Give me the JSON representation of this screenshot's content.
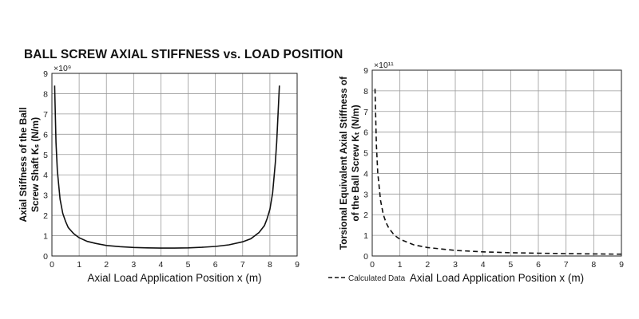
{
  "figure_title": "BALL SCREW AXIAL STIFFNESS vs. LOAD POSITION",
  "chart_data": [
    {
      "type": "line",
      "title": "",
      "xlabel": "Axial Load Application Position x (m)",
      "ylabel_line1": "Axial Stiffness of the Ball",
      "ylabel_line2": "Screw Shaft Kₛ (N/m)",
      "xlim": [
        0,
        9
      ],
      "ylim": [
        0,
        9
      ],
      "y_multiplier": "×10⁹",
      "grid": true,
      "xticks": [
        "0",
        "1",
        "2",
        "3",
        "4",
        "5",
        "6",
        "7",
        "8",
        "9"
      ],
      "yticks": [
        "0",
        "1",
        "2",
        "3",
        "4",
        "5",
        "6",
        "7",
        "8",
        "9"
      ],
      "series": [
        {
          "line_style": "solid",
          "x": [
            0.1,
            0.15,
            0.2,
            0.3,
            0.4,
            0.5,
            0.6,
            0.8,
            1.0,
            1.3,
            1.6,
            2.0,
            2.5,
            3.0,
            3.5,
            4.0,
            4.2,
            4.5,
            5.0,
            5.5,
            6.0,
            6.5,
            7.0,
            7.3,
            7.6,
            7.8,
            7.9,
            8.0,
            8.1,
            8.2,
            8.25,
            8.3,
            8.35
          ],
          "y": [
            8.4,
            5.6,
            4.2,
            2.8,
            2.1,
            1.7,
            1.4,
            1.1,
            0.9,
            0.72,
            0.62,
            0.52,
            0.46,
            0.42,
            0.4,
            0.39,
            0.39,
            0.39,
            0.4,
            0.43,
            0.47,
            0.55,
            0.7,
            0.85,
            1.15,
            1.5,
            1.85,
            2.3,
            3.1,
            4.6,
            5.6,
            7.0,
            8.4
          ]
        }
      ]
    },
    {
      "type": "line",
      "title": "",
      "xlabel": "Axial Load Application Position x (m)",
      "ylabel_line1": "Torsional Equivalent Axial Stiffness of",
      "ylabel_line2": "of the Ball Screw Kₜ (N/m)",
      "xlim": [
        0,
        9
      ],
      "ylim": [
        0,
        9
      ],
      "y_multiplier": "×10¹¹",
      "grid": true,
      "xticks": [
        "0",
        "1",
        "2",
        "3",
        "4",
        "5",
        "6",
        "7",
        "8",
        "9"
      ],
      "yticks": [
        "0",
        "1",
        "2",
        "3",
        "4",
        "5",
        "6",
        "7",
        "8",
        "9"
      ],
      "legend": "Calculated Data",
      "series": [
        {
          "name": "Calculated Data",
          "line_style": "dashed",
          "x": [
            0.1,
            0.15,
            0.2,
            0.3,
            0.4,
            0.5,
            0.6,
            0.8,
            1.0,
            1.5,
            2.0,
            3.0,
            4.0,
            5.0,
            6.0,
            7.0,
            8.0,
            9.0
          ],
          "y": [
            8.1,
            5.4,
            4.05,
            2.7,
            2.0,
            1.62,
            1.35,
            1.01,
            0.81,
            0.54,
            0.41,
            0.27,
            0.2,
            0.16,
            0.135,
            0.116,
            0.1,
            0.09
          ]
        }
      ]
    }
  ]
}
